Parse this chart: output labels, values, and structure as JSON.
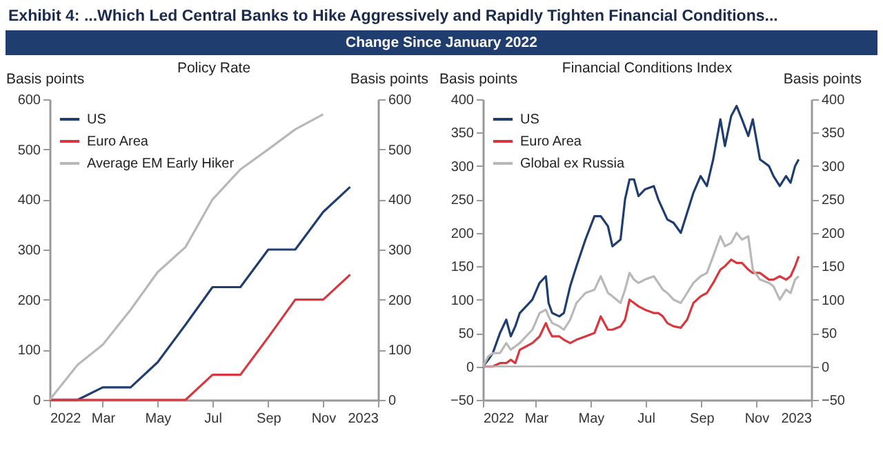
{
  "chart_data": [
    {
      "type": "line",
      "title": "Policy Rate",
      "ylabel": "Basis points",
      "y2label": "Basis points",
      "annotations": [
        "Exhibit 4: ...Which Led Central Banks to Hike Aggressively and Rapidly Tighten Financial Conditions...",
        "Change Since January 2022"
      ],
      "x": [
        "2022-01-01",
        "2022-02-01",
        "2022-03-01",
        "2022-04-01",
        "2022-05-01",
        "2022-06-01",
        "2022-07-01",
        "2022-08-01",
        "2022-09-01",
        "2022-10-01",
        "2022-11-01",
        "2022-12-01"
      ],
      "series": [
        {
          "name": "US",
          "color": "#1f3d6e",
          "values": [
            0,
            0,
            25,
            25,
            75,
            150,
            225,
            225,
            300,
            300,
            375,
            425
          ]
        },
        {
          "name": "Euro Area",
          "color": "#d9363e",
          "values": [
            0,
            0,
            0,
            0,
            0,
            0,
            50,
            50,
            125,
            200,
            200,
            250
          ]
        },
        {
          "name": "Average EM Early Hiker",
          "color": "#b8b8b8",
          "values": [
            0,
            70,
            110,
            180,
            255,
            305,
            400,
            460,
            500,
            540,
            570,
            null
          ]
        }
      ],
      "xlim": [
        "2022-01-01",
        "2023-01-01"
      ],
      "xticks": [
        {
          "value": "2022-01-01",
          "label": "2022"
        },
        {
          "value": "2022-03-01",
          "label": "Mar"
        },
        {
          "value": "2022-05-01",
          "label": "May"
        },
        {
          "value": "2022-07-01",
          "label": "Jul"
        },
        {
          "value": "2022-09-01",
          "label": "Sep"
        },
        {
          "value": "2022-11-01",
          "label": "Nov"
        },
        {
          "value": "2023-01-01",
          "label": "2023"
        }
      ],
      "ylim": [
        0,
        600
      ],
      "yticks": [
        0,
        100,
        200,
        300,
        400,
        500,
        600
      ],
      "y2lim": [
        0,
        600
      ],
      "y2ticks": [
        0,
        100,
        200,
        300,
        400,
        500,
        600
      ],
      "legend": "top left",
      "grid": false,
      "marker": "none",
      "line_style": "solid"
    },
    {
      "type": "line",
      "title": "Financial Conditions Index",
      "ylabel": "Basis points",
      "y2label": "Basis points",
      "x": [
        "2022-01-01",
        "2022-01-07",
        "2022-01-12",
        "2022-01-20",
        "2022-01-27",
        "2022-02-01",
        "2022-02-06",
        "2022-02-11",
        "2022-02-18",
        "2022-02-25",
        "2022-03-05",
        "2022-03-12",
        "2022-03-15",
        "2022-03-19",
        "2022-03-27",
        "2022-04-01",
        "2022-04-08",
        "2022-04-15",
        "2022-04-25",
        "2022-05-05",
        "2022-05-12",
        "2022-05-20",
        "2022-05-25",
        "2022-06-03",
        "2022-06-08",
        "2022-06-13",
        "2022-06-18",
        "2022-06-23",
        "2022-06-30",
        "2022-07-10",
        "2022-07-15",
        "2022-07-20",
        "2022-07-25",
        "2022-08-01",
        "2022-08-09",
        "2022-08-16",
        "2022-08-23",
        "2022-08-31",
        "2022-09-07",
        "2022-09-14",
        "2022-09-22",
        "2022-09-27",
        "2022-10-04",
        "2022-10-10",
        "2022-10-16",
        "2022-10-23",
        "2022-10-28",
        "2022-11-05",
        "2022-11-15",
        "2022-11-20",
        "2022-11-27",
        "2022-12-04",
        "2022-12-09",
        "2022-12-14",
        "2022-12-18"
      ],
      "series": [
        {
          "name": "US",
          "color": "#1f3d6e",
          "values": [
            0,
            10,
            20,
            50,
            70,
            45,
            60,
            80,
            90,
            100,
            125,
            135,
            95,
            80,
            75,
            80,
            120,
            150,
            190,
            225,
            225,
            210,
            180,
            190,
            250,
            280,
            280,
            255,
            265,
            270,
            250,
            235,
            220,
            215,
            200,
            230,
            260,
            285,
            270,
            310,
            370,
            330,
            375,
            390,
            370,
            345,
            370,
            310,
            300,
            285,
            270,
            285,
            275,
            300,
            310
          ]
        },
        {
          "name": "Euro Area",
          "color": "#d9363e",
          "values": [
            0,
            0,
            0,
            5,
            5,
            10,
            5,
            25,
            30,
            35,
            45,
            65,
            55,
            45,
            45,
            40,
            35,
            40,
            45,
            50,
            75,
            55,
            55,
            60,
            70,
            100,
            95,
            90,
            85,
            80,
            80,
            75,
            65,
            60,
            58,
            70,
            95,
            105,
            110,
            125,
            145,
            150,
            160,
            155,
            155,
            145,
            140,
            140,
            130,
            130,
            135,
            130,
            135,
            150,
            165
          ]
        },
        {
          "name": "Global ex Russia",
          "color": "#b8b8b8",
          "values": [
            0,
            15,
            20,
            20,
            35,
            25,
            30,
            35,
            45,
            55,
            80,
            85,
            75,
            65,
            60,
            55,
            70,
            95,
            110,
            115,
            135,
            110,
            105,
            95,
            115,
            140,
            130,
            125,
            130,
            135,
            125,
            115,
            110,
            100,
            95,
            110,
            125,
            135,
            140,
            165,
            195,
            180,
            185,
            200,
            190,
            195,
            145,
            130,
            125,
            120,
            100,
            115,
            110,
            130,
            135
          ]
        }
      ],
      "xlim": [
        "2022-01-01",
        "2023-01-01"
      ],
      "xticks": [
        {
          "value": "2022-01-01",
          "label": "2022"
        },
        {
          "value": "2022-03-01",
          "label": "Mar"
        },
        {
          "value": "2022-05-01",
          "label": "May"
        },
        {
          "value": "2022-07-01",
          "label": "Jul"
        },
        {
          "value": "2022-09-01",
          "label": "Sep"
        },
        {
          "value": "2022-11-01",
          "label": "Nov"
        },
        {
          "value": "2023-01-01",
          "label": "2023"
        }
      ],
      "ylim": [
        -50,
        400
      ],
      "yticks": [
        -50,
        0,
        50,
        100,
        150,
        200,
        250,
        300,
        350,
        400
      ],
      "y2lim": [
        -50,
        400
      ],
      "y2ticks": [
        -50,
        0,
        50,
        100,
        150,
        200,
        250,
        300,
        350,
        400
      ],
      "ref_lines": [
        {
          "axis": "y",
          "value": 0,
          "color": "#b0b0b0"
        }
      ],
      "legend": "top left",
      "grid": false,
      "marker": "none",
      "line_style": "solid"
    }
  ]
}
